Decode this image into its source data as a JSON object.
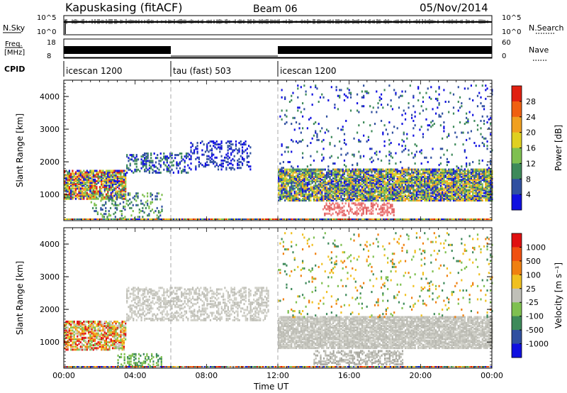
{
  "header": {
    "station": "Kapuskasing (fitACF)",
    "beam": "Beam 06",
    "date": "05/Nov/2014"
  },
  "strips": {
    "nsky": {
      "label": "N.Sky",
      "ticks": [
        "10^5",
        "10^0"
      ],
      "right_ticks": [
        "10^5",
        "10^0"
      ],
      "right_label": "N.Search"
    },
    "freq": {
      "label_top": "Freq.",
      "label_bottom": "[MHz]",
      "ticks": [
        "18",
        "8"
      ],
      "right_ticks": [
        "60",
        "0"
      ],
      "right_label": "Nave"
    },
    "cpid": {
      "label": "CPID",
      "segments": [
        {
          "name": "icescan 1200",
          "start": 0,
          "end": 6
        },
        {
          "name": "tau (fast) 503",
          "start": 6,
          "end": 12
        },
        {
          "name": "icescan 1200",
          "start": 12,
          "end": 24
        }
      ]
    }
  },
  "chart_data": [
    {
      "type": "heatmap",
      "title": "",
      "xlabel": "",
      "ylabel": "Slant Range [km]",
      "x_unit": "hours UT",
      "xlim": [
        0,
        24
      ],
      "ylim": [
        200,
        4500
      ],
      "y_ticks": [
        "1000",
        "2000",
        "3000",
        "4000"
      ],
      "colorbar": {
        "label": "Power [dB]",
        "ticks": [
          "4",
          "8",
          "12",
          "16",
          "20",
          "24",
          "28"
        ],
        "colors": [
          "#1010e0",
          "#3050a0",
          "#3e8a5a",
          "#7fc050",
          "#e0d020",
          "#f0a020",
          "#f06010",
          "#e02010"
        ]
      },
      "scatter_regions": [
        {
          "t0": 0,
          "t1": 3.5,
          "r0": 900,
          "r1": 1800,
          "density": 0.8,
          "colors": [
            "#1010e0",
            "#3e8a5a",
            "#7fc050",
            "#e0d020",
            "#f0a020",
            "#e02010"
          ]
        },
        {
          "t0": 1.5,
          "t1": 5.5,
          "r0": 300,
          "r1": 1100,
          "density": 0.25,
          "colors": [
            "#3e8a5a",
            "#7fc050",
            "#3050a0"
          ]
        },
        {
          "t0": 3.5,
          "t1": 7.0,
          "r0": 1700,
          "r1": 2300,
          "density": 0.35,
          "colors": [
            "#1010e0",
            "#3050a0",
            "#3e8a5a"
          ]
        },
        {
          "t0": 7.0,
          "t1": 10.5,
          "r0": 1800,
          "r1": 2700,
          "density": 0.3,
          "colors": [
            "#1010e0",
            "#3050a0"
          ]
        },
        {
          "t0": 12,
          "t1": 24,
          "r0": 850,
          "r1": 1800,
          "density": 0.85,
          "colors": [
            "#1010e0",
            "#3050a0",
            "#3e8a5a",
            "#7fc050",
            "#e0d020",
            "#f0a020"
          ]
        },
        {
          "t0": 14.5,
          "t1": 18.5,
          "r0": 400,
          "r1": 800,
          "density": 0.4,
          "colors": [
            "#e06060",
            "#f08080"
          ]
        },
        {
          "t0": 12,
          "t1": 24,
          "r0": 1800,
          "r1": 4400,
          "density": 0.06,
          "colors": [
            "#1010e0",
            "#3050a0",
            "#3e8a5a"
          ]
        }
      ]
    },
    {
      "type": "heatmap",
      "title": "",
      "xlabel": "Time UT",
      "ylabel": "Slant Range [km]",
      "x_unit": "hours UT",
      "xlim": [
        0,
        24
      ],
      "ylim": [
        200,
        4500
      ],
      "x_ticks": [
        "00:00",
        "04:00",
        "08:00",
        "12:00",
        "16:00",
        "20:00",
        "00:00"
      ],
      "y_ticks": [
        "1000",
        "2000",
        "3000",
        "4000"
      ],
      "colorbar": {
        "label": "Velocity [m s⁻¹]",
        "ticks": [
          "1000",
          "500",
          "100",
          "25",
          "-25",
          "-100",
          "-500",
          "-1000"
        ],
        "colors": [
          "#1010e0",
          "#3050a0",
          "#3e8a5a",
          "#7fc050",
          "#c0c0b8",
          "#f0c020",
          "#f08010",
          "#f05010",
          "#e01010"
        ]
      },
      "scatter_regions": [
        {
          "t0": 0,
          "t1": 3.5,
          "r0": 800,
          "r1": 1700,
          "density": 0.7,
          "colors": [
            "#f08010",
            "#e01010",
            "#f0c020",
            "#7fc050",
            "#c0c0b8"
          ]
        },
        {
          "t0": 3.5,
          "t1": 11.5,
          "r0": 1700,
          "r1": 2700,
          "density": 0.45,
          "colors": [
            "#c0c0b8",
            "#d0d0c8"
          ]
        },
        {
          "t0": 3.0,
          "t1": 5.5,
          "r0": 300,
          "r1": 700,
          "density": 0.4,
          "colors": [
            "#7fc050",
            "#3e8a5a"
          ]
        },
        {
          "t0": 12,
          "t1": 24,
          "r0": 850,
          "r1": 1800,
          "density": 0.85,
          "colors": [
            "#c0c0b8",
            "#b8b8b0",
            "#d0d0c8"
          ]
        },
        {
          "t0": 14,
          "t1": 19,
          "r0": 350,
          "r1": 800,
          "density": 0.5,
          "colors": [
            "#c0c0b8",
            "#a8a8a0"
          ]
        },
        {
          "t0": 12,
          "t1": 24,
          "r0": 1800,
          "r1": 4400,
          "density": 0.06,
          "colors": [
            "#f0c020",
            "#7fc050",
            "#f08010",
            "#3e8a5a"
          ]
        }
      ]
    }
  ]
}
